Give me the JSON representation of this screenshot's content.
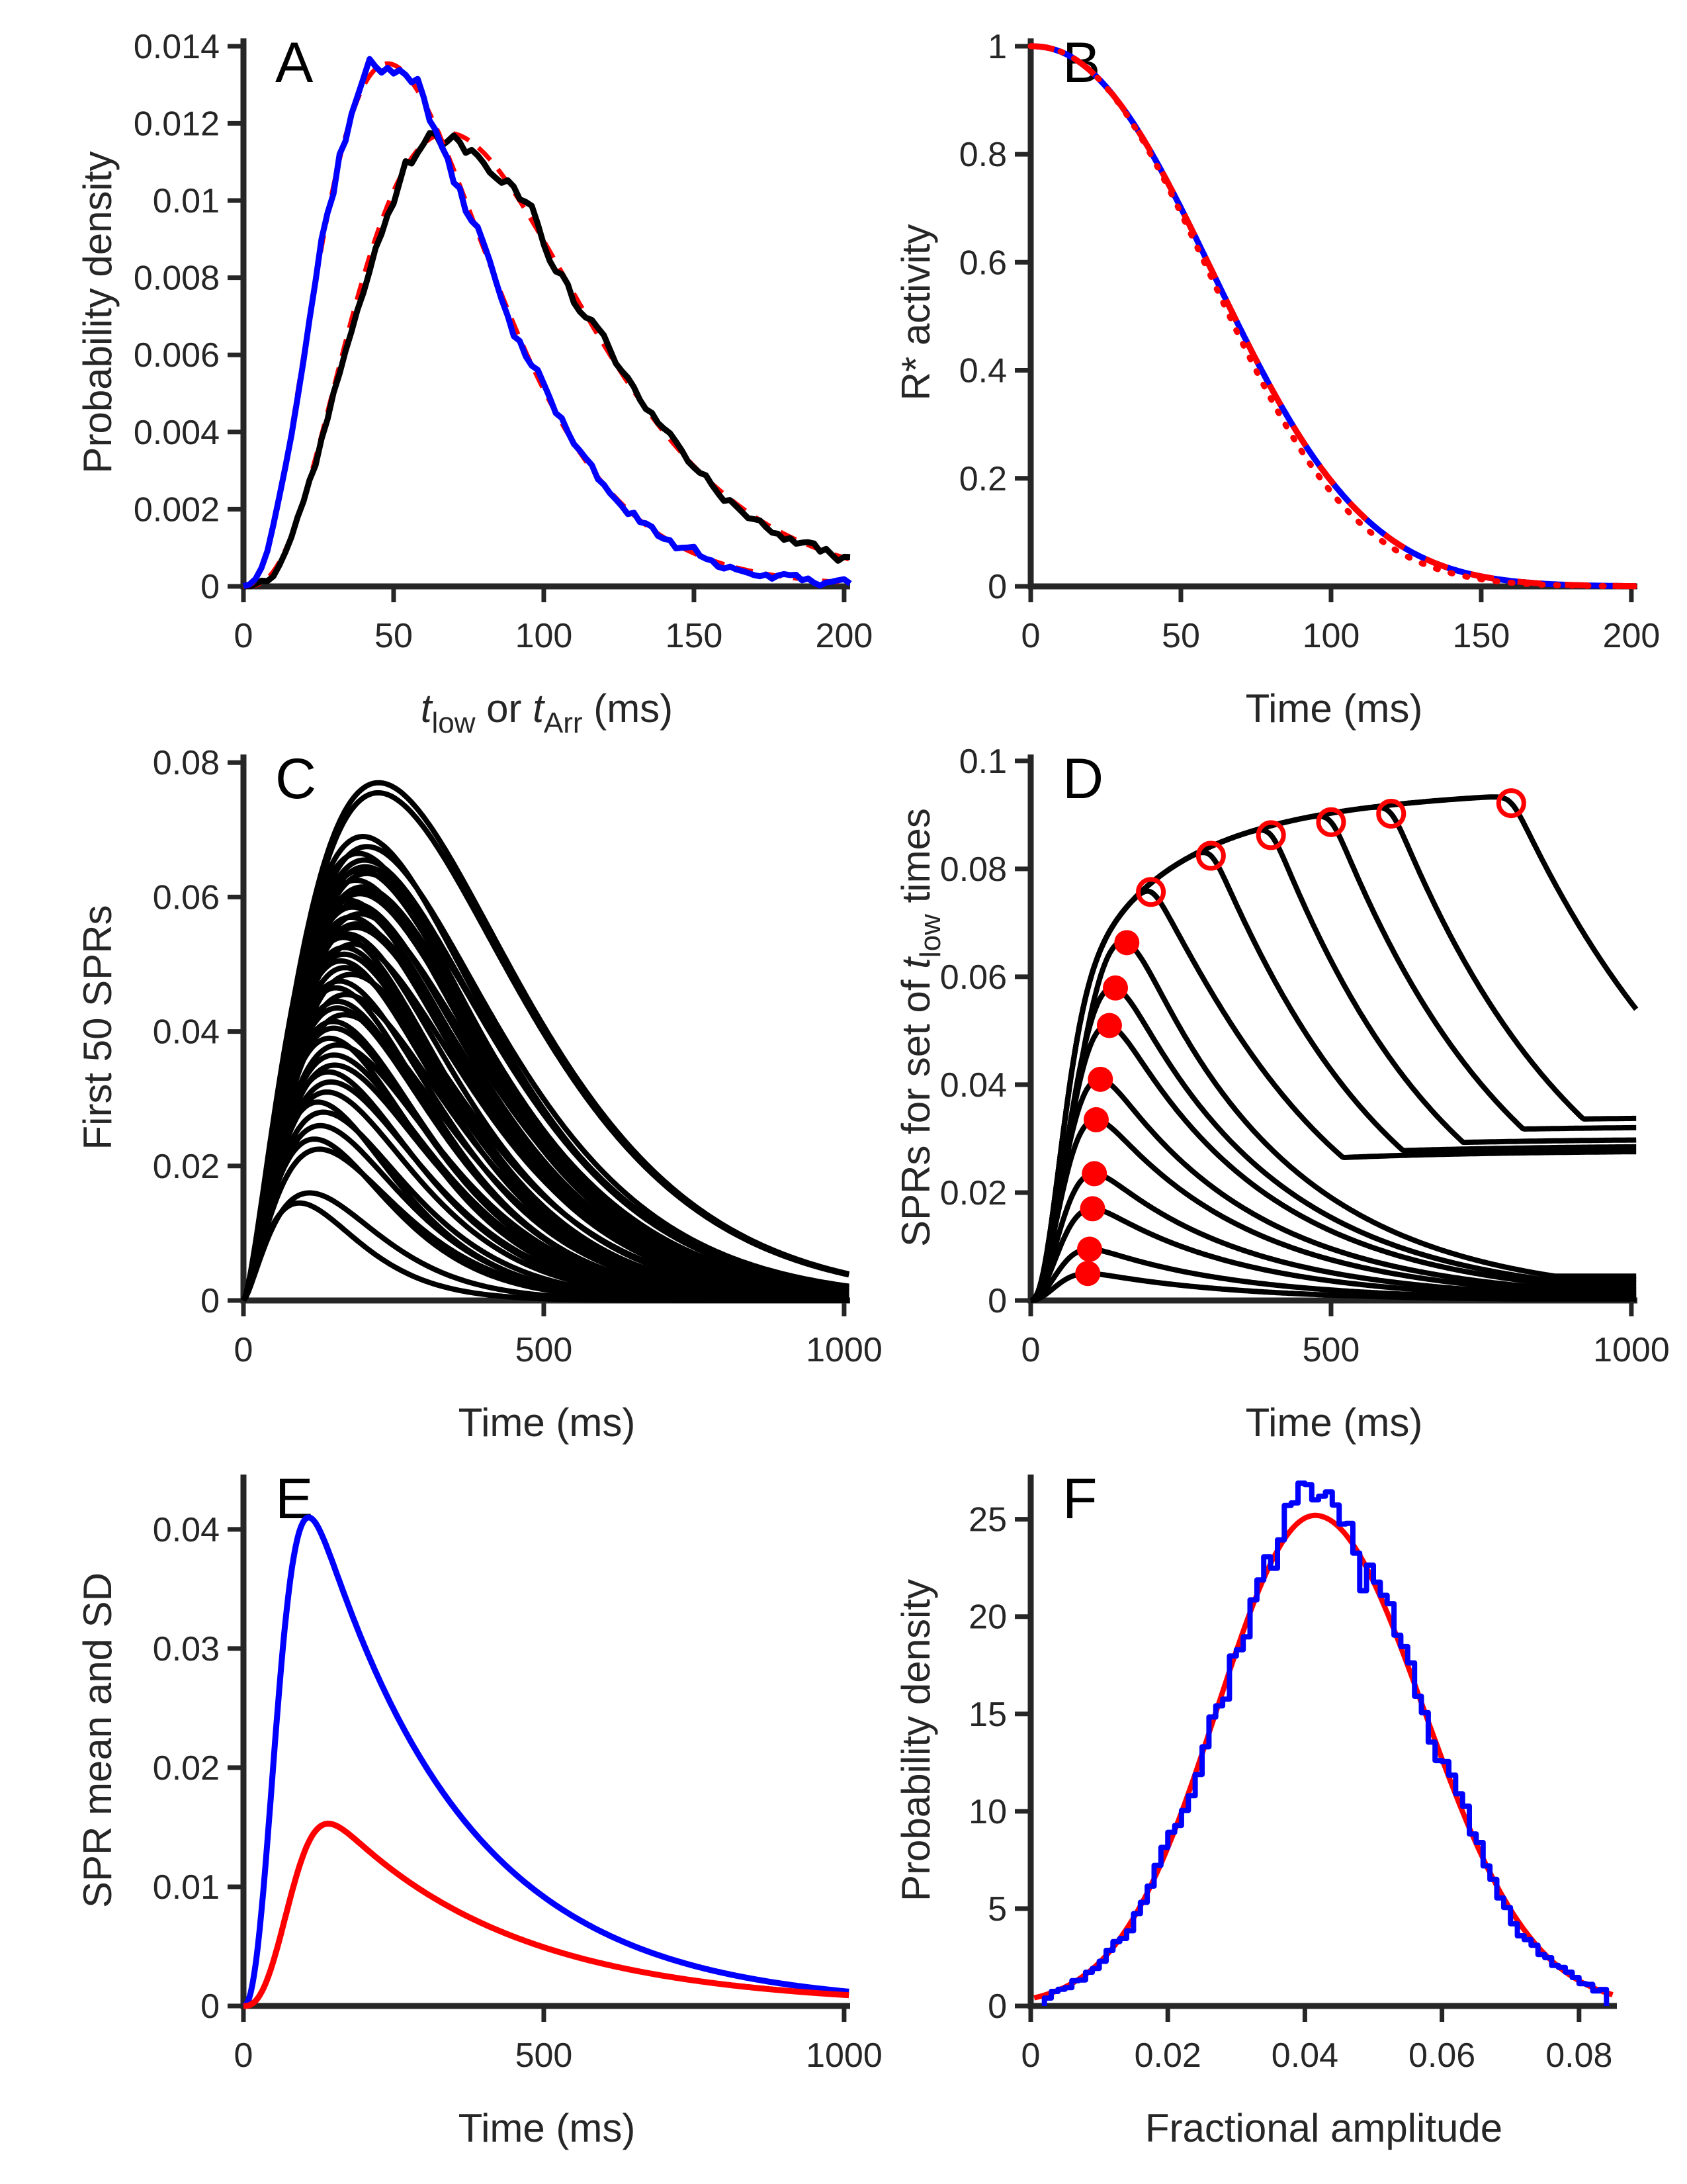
{
  "figure": {
    "background": "#ffffff",
    "axis_color": "#262626",
    "text_color": "#262626",
    "palette": {
      "blue": "#0000ff",
      "red": "#ff0000",
      "black": "#000000"
    }
  },
  "chart_data": [
    {
      "panel": "A",
      "panel_label": "A",
      "type": "line",
      "title": "",
      "xlabel_rich": [
        {
          "t": "t",
          "s": "i"
        },
        {
          "t": "low",
          "s": "sub"
        },
        {
          "t": " or ",
          "s": "n"
        },
        {
          "t": "t",
          "s": "i"
        },
        {
          "t": "Arr",
          "s": "sub"
        },
        {
          "t": " (ms)",
          "s": "n"
        }
      ],
      "ylabel_rich": [
        {
          "t": "Probability density",
          "s": "n"
        }
      ],
      "xlim": [
        0,
        200
      ],
      "ylim": [
        0,
        0.014
      ],
      "xticks": [
        0,
        50,
        100,
        150,
        200
      ],
      "xtick_labels": [
        "0",
        "50",
        "100",
        "150",
        "200"
      ],
      "yticks": [
        0,
        0.002,
        0.004,
        0.006,
        0.008,
        0.01,
        0.012,
        0.014
      ],
      "ytick_labels": [
        "0",
        "0.002",
        "0.004",
        "0.006",
        "0.008",
        "0.01",
        "0.012",
        "0.014"
      ],
      "grid": false,
      "series": [
        {
          "name": "t-arr-fit",
          "model": "gamma",
          "A": 0.01175,
          "tp": 68,
          "q": 3.2,
          "color": "red",
          "width": 7,
          "dash": "26 18"
        },
        {
          "name": "t-arr-histogram-trace",
          "model": "gamma-noisy",
          "A": 0.01175,
          "tp": 68,
          "q": 3.2,
          "noise": {
            "seed": 22,
            "rel": 0.02,
            "abs": 8e-05,
            "step": 2
          },
          "color": "black",
          "width": 9
        },
        {
          "name": "t-low-fit",
          "model": "gamma",
          "A": 0.01355,
          "tp": 48,
          "q": 2.8,
          "color": "red",
          "width": 7,
          "dash": "26 18"
        },
        {
          "name": "t-low-histogram-trace",
          "model": "gamma-noisy",
          "A": 0.01355,
          "tp": 48,
          "q": 2.8,
          "noise": {
            "seed": 11,
            "rel": 0.02,
            "abs": 8e-05,
            "step": 2
          },
          "color": "blue",
          "width": 9
        }
      ],
      "annotations": {
        "peaks": {
          "blue": {
            "x": 48,
            "y": 0.0136
          },
          "black": {
            "x": 68,
            "y": 0.0118
          }
        }
      }
    },
    {
      "panel": "B",
      "panel_label": "B",
      "type": "line",
      "title": "",
      "xlabel_rich": [
        {
          "t": "Time (ms)",
          "s": "n"
        }
      ],
      "ylabel_rich": [
        {
          "t": "R* activity",
          "s": "n"
        }
      ],
      "xlim": [
        0,
        200
      ],
      "ylim": [
        0,
        1
      ],
      "xticks": [
        0,
        50,
        100,
        150,
        200
      ],
      "xtick_labels": [
        "0",
        "50",
        "100",
        "150",
        "200"
      ],
      "yticks": [
        0,
        0.2,
        0.4,
        0.6,
        0.8,
        1
      ],
      "ytick_labels": [
        "0",
        "0.2",
        "0.4",
        "0.6",
        "0.8",
        "1"
      ],
      "grid": false,
      "series": [
        {
          "name": "r-star-simulated",
          "model": "wdecay",
          "tau": 80,
          "k": 2.2,
          "color": "blue",
          "width": 9
        },
        {
          "name": "r-star-fit-dashed",
          "model": "wdecay",
          "tau": 80,
          "k": 2.2,
          "color": "red",
          "width": 9,
          "dash": "36 36"
        },
        {
          "name": "r-star-fit-dotted",
          "model": "wdecay",
          "tau": 78,
          "k": 2.24,
          "color": "red",
          "width": 9,
          "dash": "3 20",
          "cap": "round"
        }
      ]
    },
    {
      "panel": "C",
      "panel_label": "C",
      "type": "line",
      "title": "",
      "xlabel_rich": [
        {
          "t": "Time (ms)",
          "s": "n"
        }
      ],
      "ylabel_rich": [
        {
          "t": "First 50 SPRs",
          "s": "n"
        }
      ],
      "xlim": [
        0,
        1000
      ],
      "ylim": [
        0,
        0.08
      ],
      "xticks": [
        0,
        500,
        1000
      ],
      "xtick_labels": [
        "0",
        "500",
        "1000"
      ],
      "yticks": [
        0,
        0.02,
        0.04,
        0.06,
        0.08
      ],
      "ytick_labels": [
        "0",
        "0.02",
        "0.04",
        "0.06",
        "0.08"
      ],
      "grid": false,
      "series": [
        {
          "name": "spr-family",
          "model": "spr-family",
          "q": 1.5,
          "tp_base": 78,
          "tp_slope": 1850,
          "tp_jitter": 12,
          "seed": 5,
          "color": "black",
          "width": 8,
          "amplitudes": [
            0.077,
            0.0755,
            0.069,
            0.0675,
            0.0665,
            0.0655,
            0.0645,
            0.064,
            0.0635,
            0.0625,
            0.0615,
            0.061,
            0.0605,
            0.0595,
            0.059,
            0.0585,
            0.0575,
            0.057,
            0.056,
            0.0555,
            0.0545,
            0.054,
            0.053,
            0.0525,
            0.0515,
            0.0505,
            0.0495,
            0.0485,
            0.0475,
            0.0465,
            0.0455,
            0.0445,
            0.0435,
            0.0425,
            0.0415,
            0.0405,
            0.039,
            0.038,
            0.0365,
            0.035,
            0.034,
            0.0325,
            0.031,
            0.0295,
            0.028,
            0.026,
            0.024,
            0.0225,
            0.016,
            0.0145
          ]
        }
      ]
    },
    {
      "panel": "D",
      "panel_label": "D",
      "type": "line",
      "title": "",
      "xlabel_rich": [
        {
          "t": "Time (ms)",
          "s": "n"
        }
      ],
      "ylabel_rich": [
        {
          "t": "SPRs for set of ",
          "s": "n"
        },
        {
          "t": "t",
          "s": "i"
        },
        {
          "t": "low",
          "s": "sub"
        },
        {
          "t": " times",
          "s": "n"
        }
      ],
      "xlim": [
        0,
        1000
      ],
      "ylim": [
        0,
        0.1
      ],
      "xticks": [
        0,
        500,
        1000
      ],
      "xtick_labels": [
        "0",
        "500",
        "1000"
      ],
      "yticks": [
        0,
        0.02,
        0.04,
        0.06,
        0.08,
        0.1
      ],
      "ytick_labels": [
        "0",
        "0.02",
        "0.04",
        "0.06",
        "0.08",
        "0.1"
      ],
      "grid": false,
      "envelope": {
        "c": 0.0955,
        "tau": 87.7,
        "k": 0.615,
        "start_tau": 55,
        "start_k": 1.8
      },
      "series": [
        {
          "name": "tlow-family",
          "model": "tlow-family",
          "color": "black",
          "width": 8,
          "curves": [
            {
              "t_low": 95,
              "peak": 0.005,
              "tau": 240,
              "marker": "filled"
            },
            {
              "t_low": 98,
              "peak": 0.0095,
              "tau": 242,
              "marker": "filled"
            },
            {
              "t_low": 103,
              "peak": 0.017,
              "tau": 245,
              "marker": "filled"
            },
            {
              "t_low": 106,
              "peak": 0.0235,
              "tau": 248,
              "marker": "filled"
            },
            {
              "t_low": 109,
              "peak": 0.0335,
              "tau": 250,
              "marker": "filled"
            },
            {
              "t_low": 116,
              "peak": 0.041,
              "tau": 252,
              "marker": "filled"
            },
            {
              "t_low": 131,
              "peak": 0.051,
              "tau": 255,
              "marker": "filled"
            },
            {
              "t_low": 141,
              "peak": 0.058,
              "tau": 257,
              "marker": "filled"
            },
            {
              "t_low": 160,
              "peak": 0.0665,
              "tau": 258,
              "marker": "filled"
            },
            {
              "t_low": 200,
              "peak": 0.0765,
              "tau": 260,
              "marker": "open"
            },
            {
              "t_low": 300,
              "peak": 0.0825,
              "tau": 267,
              "marker": "open"
            },
            {
              "t_low": 400,
              "peak": 0.087,
              "tau": 277,
              "marker": "open"
            },
            {
              "t_low": 500,
              "peak": 0.0895,
              "tau": 296,
              "marker": "open"
            },
            {
              "t_low": 600,
              "peak": 0.0905,
              "tau": 311,
              "marker": "open"
            },
            {
              "t_low": 800,
              "peak": 0.0925,
              "tau": 372,
              "marker": "open"
            }
          ]
        }
      ],
      "marker_style": {
        "filled": {
          "r": 19,
          "color": "red"
        },
        "open": {
          "r": 19,
          "stroke": 7,
          "color": "red"
        }
      }
    },
    {
      "panel": "E",
      "panel_label": "E",
      "type": "line",
      "title": "",
      "xlabel_rich": [
        {
          "t": "Time (ms)",
          "s": "n"
        }
      ],
      "ylabel_rich": [
        {
          "t": "SPR mean and SD",
          "s": "n"
        }
      ],
      "xlim": [
        0,
        1000
      ],
      "ylim": [
        0,
        0.04
      ],
      "xticks": [
        0,
        500,
        1000
      ],
      "xtick_labels": [
        "0",
        "500",
        "1000"
      ],
      "yticks": [
        0,
        0.01,
        0.02,
        0.03,
        0.04
      ],
      "ytick_labels": [
        "0",
        "0.01",
        "0.02",
        "0.03",
        "0.04"
      ],
      "grid": false,
      "series": [
        {
          "name": "spr-mean",
          "model": "rise-decay",
          "peak": 0.041,
          "r": 70,
          "k": 2.3,
          "tau_d": 250,
          "color": "blue",
          "width": 9
        },
        {
          "name": "spr-sd",
          "model": "rise-decay",
          "peak": 0.0153,
          "r": 95,
          "k": 2.6,
          "tau_d": 300,
          "color": "red",
          "width": 9
        }
      ],
      "annotations": {
        "peaks": {
          "mean": {
            "x": 118,
            "y": 0.041
          },
          "sd": {
            "x": 160,
            "y": 0.0153
          }
        }
      }
    },
    {
      "panel": "F",
      "panel_label": "F",
      "type": "line",
      "title": "",
      "xlabel_rich": [
        {
          "t": "Fractional amplitude",
          "s": "n"
        }
      ],
      "ylabel_rich": [
        {
          "t": "Probability density",
          "s": "n"
        }
      ],
      "xlim": [
        0,
        0.08
      ],
      "ylim": [
        0,
        25
      ],
      "xticks": [
        0,
        0.02,
        0.04,
        0.06,
        0.08
      ],
      "xtick_labels": [
        "0",
        "0.02",
        "0.04",
        "0.06",
        "0.08"
      ],
      "yticks": [
        0,
        5,
        10,
        15,
        20,
        25
      ],
      "ytick_labels": [
        "0",
        "5",
        "10",
        "15",
        "20",
        "25"
      ],
      "grid": false,
      "series": [
        {
          "name": "amplitude-pdf-fit",
          "model": "skew-gauss",
          "A": 25.2,
          "mu": 0.0415,
          "sig_left": 0.0143,
          "sig_right": 0.0158,
          "range": [
            0.0005,
            0.0852
          ],
          "color": "red",
          "width": 8
        },
        {
          "name": "amplitude-histogram",
          "model": "hist",
          "bin": 0.001,
          "from": 0.002,
          "to": 0.084,
          "seed": 7,
          "rel": 0.05,
          "abs": 0.18,
          "base": {
            "A": 25.2,
            "mu": 0.0415,
            "sig_left": 0.0143,
            "sig_right": 0.0158
          },
          "color": "blue",
          "width": 8
        }
      ],
      "annotations": {
        "peak": {
          "x": 0.0415,
          "y": 25.2
        }
      }
    }
  ]
}
